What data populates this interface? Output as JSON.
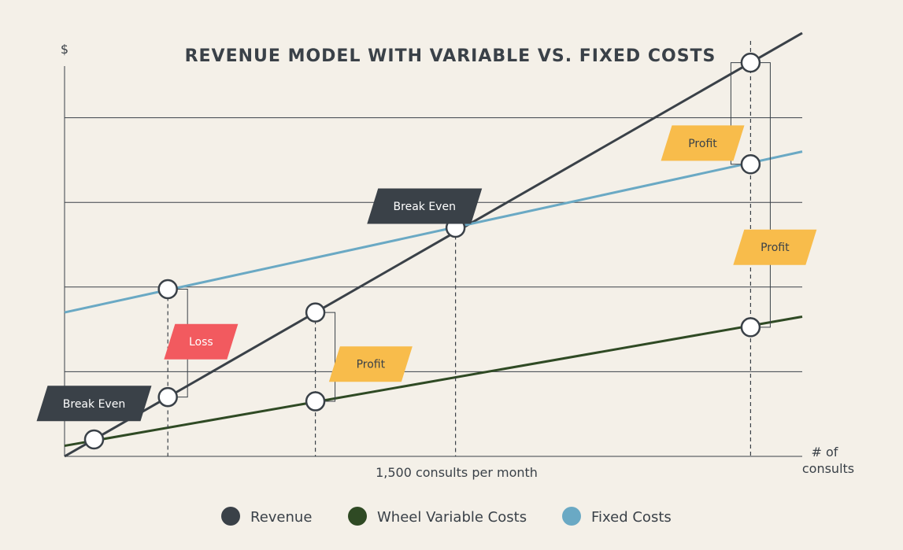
{
  "chart_data": {
    "type": "line",
    "title": "REVENUE MODEL WITH VARIABLE VS. FIXED COSTS",
    "ylabel": "$",
    "xlabel": "# of\nconsults",
    "x_annotation": "1,500 consults per month",
    "xlim": [
      0,
      10
    ],
    "ylim": [
      0,
      10
    ],
    "grid": true,
    "series": [
      {
        "name": "Revenue",
        "color": "#3a4148",
        "x": [
          0,
          10
        ],
        "y": [
          0,
          10
        ]
      },
      {
        "name": "Wheel Variable Costs",
        "color": "#2f4a24",
        "x": [
          0,
          10
        ],
        "y": [
          0.25,
          3.3
        ]
      },
      {
        "name": "Fixed Costs",
        "color": "#6aa9c4",
        "x": [
          0,
          10
        ],
        "y": [
          3.4,
          7.2
        ]
      }
    ],
    "points": [
      {
        "x": 0.4,
        "y": 0.4
      },
      {
        "x": 1.4,
        "y": 1.4
      },
      {
        "x": 1.4,
        "y": 3.95
      },
      {
        "x": 3.4,
        "y": 3.4
      },
      {
        "x": 3.4,
        "y": 1.3
      },
      {
        "x": 5.3,
        "y": 5.4
      },
      {
        "x": 9.3,
        "y": 9.3
      },
      {
        "x": 9.3,
        "y": 6.9
      },
      {
        "x": 9.3,
        "y": 3.05
      }
    ],
    "annotations": [
      {
        "text": "Break Even",
        "style": "dark"
      },
      {
        "text": "Loss",
        "style": "loss"
      },
      {
        "text": "Profit",
        "style": "profit"
      },
      {
        "text": "Break Even",
        "style": "dark"
      },
      {
        "text": "Profit",
        "style": "profit"
      },
      {
        "text": "Profit",
        "style": "profit"
      }
    ],
    "legend": {
      "position": "bottom"
    },
    "colors": {
      "background": "#f4f0e8",
      "dark": "#3a4148",
      "loss": "#f25a5f",
      "profit": "#f8bc4b",
      "fixed": "#6aa9c4",
      "variable": "#2f4a24"
    }
  }
}
